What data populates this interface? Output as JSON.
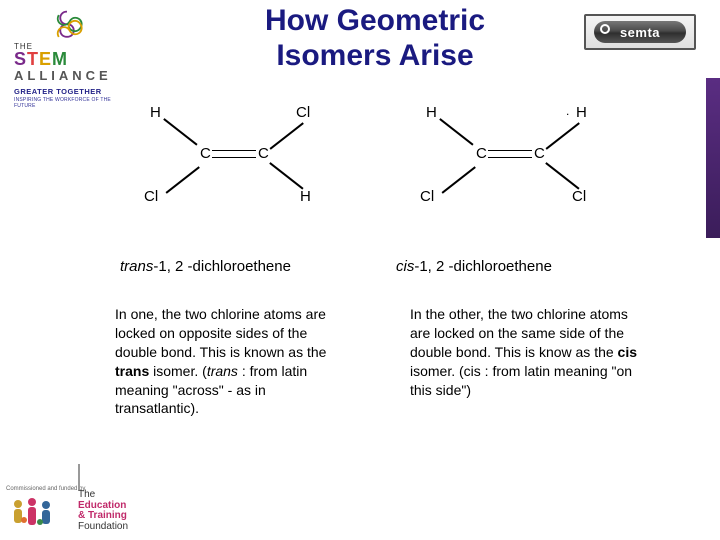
{
  "title_line1": "How Geometric",
  "title_line2": "Isomers Arise",
  "stem": {
    "the": "THE",
    "word_s": "S",
    "word_t": "T",
    "word_e": "E",
    "word_m": "M",
    "alliance": "ALLIANCE",
    "tag": "GREATER TOGETHER",
    "sub": "INSPIRING THE WORKFORCE OF THE FUTURE"
  },
  "semta": {
    "label": "semta"
  },
  "mol_trans": {
    "H_tl": "H",
    "Cl_tr": "Cl",
    "Cl_bl": "Cl",
    "H_br": "H",
    "C1": "C",
    "C2": "C",
    "cap_prefix": "trans",
    "cap_rest": "-1, 2 -dichloroethene"
  },
  "mol_cis": {
    "H_tl": "H",
    "H_tr": "H",
    "Cl_bl": "Cl",
    "Cl_br": "Cl",
    "C1": "C",
    "C2": "C",
    "cap_prefix": "cis",
    "cap_rest": "-1, 2 -dichloroethene"
  },
  "para_left_html": "In one, the two chlorine atoms are locked on opposite sides of the double bond. This is known as the <b>trans</b> isomer. (<i>trans</i> : from latin meaning \"across\" - as in transatlantic).",
  "para_right_html": "In the other, the two chlorine atoms are locked on the same side of the double bond. This is know as the <b>cis</b> isomer. (cis : from latin meaning \"on this side\")",
  "etf": {
    "conf": "Commissioned and funded by",
    "row1": "The",
    "row2": "Education & Training",
    "row3": "Foundation"
  },
  "colors": {
    "title": "#1a1a80",
    "accent": "#5a2d82"
  }
}
